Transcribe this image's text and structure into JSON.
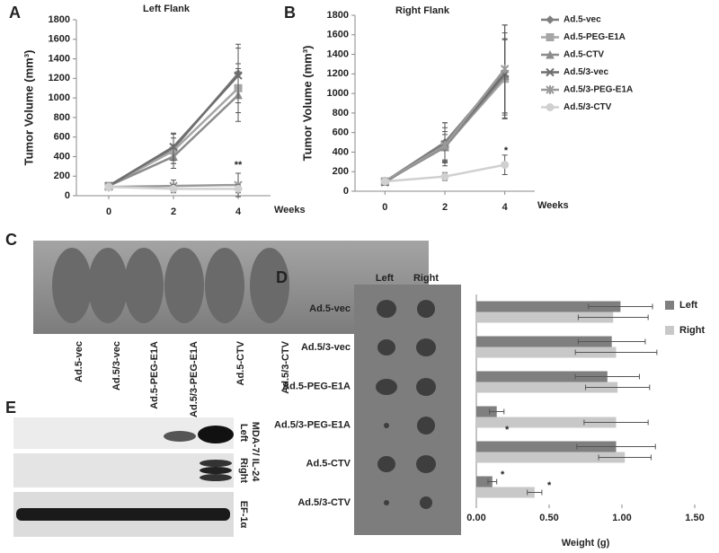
{
  "panel_labels": [
    "A",
    "B",
    "C",
    "D",
    "E"
  ],
  "photo_c": {
    "labels": [
      "Ad.5-vec",
      "Ad.5/3-vec",
      "Ad.5-PEG-E1A",
      "Ad.5/3-PEG-E1A",
      "Ad.5-CTV",
      "Ad.5/3-CTV"
    ]
  },
  "photo_d": {
    "columns": [
      "Left",
      "Right"
    ]
  },
  "blot_e": {
    "labels": [
      "Left",
      "Right",
      "MDA-7/ IL-24",
      "EF-1α"
    ]
  },
  "chart_data": [
    {
      "type": "line",
      "title": "Left Flank",
      "ylabel": "Tumor Volume (mm³)",
      "xlabel": "Weeks",
      "x": [
        0,
        2,
        4
      ],
      "xlim": [
        -1,
        5
      ],
      "xticks": [
        0,
        2,
        4
      ],
      "ylim": [
        0,
        1800
      ],
      "yticks": [
        0,
        200,
        400,
        600,
        800,
        1000,
        1200,
        1400,
        1600,
        1800
      ],
      "series": [
        {
          "color": "#7f7f7f",
          "marker": "diamond",
          "values": [
            100,
            480,
            1250
          ],
          "errors": [
            20,
            150,
            300
          ]
        },
        {
          "color": "#a6a6a6",
          "marker": "square",
          "values": [
            100,
            460,
            1100
          ],
          "errors": [
            20,
            130,
            250
          ]
        },
        {
          "color": "#8c8c8c",
          "marker": "triangle",
          "values": [
            100,
            400,
            1030
          ],
          "errors": [
            20,
            120,
            270
          ]
        },
        {
          "color": "#6e6e6e",
          "marker": "x",
          "values": [
            100,
            500,
            1230
          ],
          "errors": [
            20,
            140,
            280
          ]
        },
        {
          "color": "#9a9a9a",
          "marker": "star",
          "values": [
            90,
            100,
            110
          ],
          "errors": [
            20,
            60,
            120
          ]
        },
        {
          "color": "#d0d0d0",
          "marker": "circle",
          "values": [
            90,
            70,
            70
          ],
          "errors": [
            20,
            40,
            40
          ]
        }
      ],
      "annotations": [
        "**"
      ]
    },
    {
      "type": "line",
      "title": "Right Flank",
      "ylabel": "Tumor Volume (mm³)",
      "xlabel": "Weeks",
      "x": [
        0,
        2,
        4
      ],
      "xlim": [
        -1,
        5
      ],
      "xticks": [
        0,
        2,
        4
      ],
      "ylim": [
        0,
        1800
      ],
      "yticks": [
        0,
        200,
        400,
        600,
        800,
        1000,
        1200,
        1400,
        1600,
        1800
      ],
      "series": [
        {
          "name": "Ad.5-vec",
          "color": "#7f7f7f",
          "marker": "diamond",
          "values": [
            100,
            500,
            1220
          ],
          "errors": [
            30,
            200,
            480
          ]
        },
        {
          "name": "Ad.5-PEG-E1A",
          "color": "#a6a6a6",
          "marker": "square",
          "values": [
            100,
            460,
            1150
          ],
          "errors": [
            30,
            150,
            400
          ]
        },
        {
          "name": "Ad.5-CTV",
          "color": "#8c8c8c",
          "marker": "triangle",
          "values": [
            100,
            450,
            1180
          ],
          "errors": [
            30,
            130,
            380
          ]
        },
        {
          "name": "Ad.5/3-vec",
          "color": "#6e6e6e",
          "marker": "x",
          "values": [
            90,
            480,
            1200
          ],
          "errors": [
            30,
            220,
            420
          ]
        },
        {
          "name": "Ad.5/3-PEG-E1A",
          "color": "#9a9a9a",
          "marker": "star",
          "values": [
            100,
            470,
            1250
          ],
          "errors": [
            30,
            180,
            450
          ]
        },
        {
          "name": "Ad.5/3-CTV",
          "color": "#d0d0d0",
          "marker": "circle",
          "values": [
            100,
            150,
            270
          ],
          "errors": [
            30,
            40,
            100
          ]
        }
      ],
      "annotations": [
        "*"
      ]
    },
    {
      "type": "hbar",
      "xlabel": "Weight (g)",
      "categories": [
        "Ad.5-vec",
        "Ad.5/3-vec",
        "Ad.5-PEG-E1A",
        "Ad.5/3-PEG-E1A",
        "Ad.5-CTV",
        "Ad.5/3-CTV"
      ],
      "xlim": [
        0,
        1.5
      ],
      "xticks": [
        {
          "value": 0,
          "label": "0.00"
        },
        {
          "value": 0.5,
          "label": "0.50"
        },
        {
          "value": 1,
          "label": "1.00"
        },
        {
          "value": 1.5,
          "label": "1.50"
        }
      ],
      "series": [
        {
          "name": "Left",
          "color": "#7f7f7f",
          "values": [
            0.99,
            0.93,
            0.9,
            0.14,
            0.96,
            0.11
          ],
          "errors": [
            0.22,
            0.23,
            0.22,
            0.05,
            0.27,
            0.03
          ]
        },
        {
          "name": "Right",
          "color": "#c8c8c8",
          "values": [
            0.94,
            0.96,
            0.97,
            0.96,
            1.02,
            0.4
          ],
          "errors": [
            0.24,
            0.28,
            0.22,
            0.22,
            0.18,
            0.05
          ]
        }
      ],
      "annotations": [
        "*",
        "*",
        "*"
      ]
    }
  ]
}
